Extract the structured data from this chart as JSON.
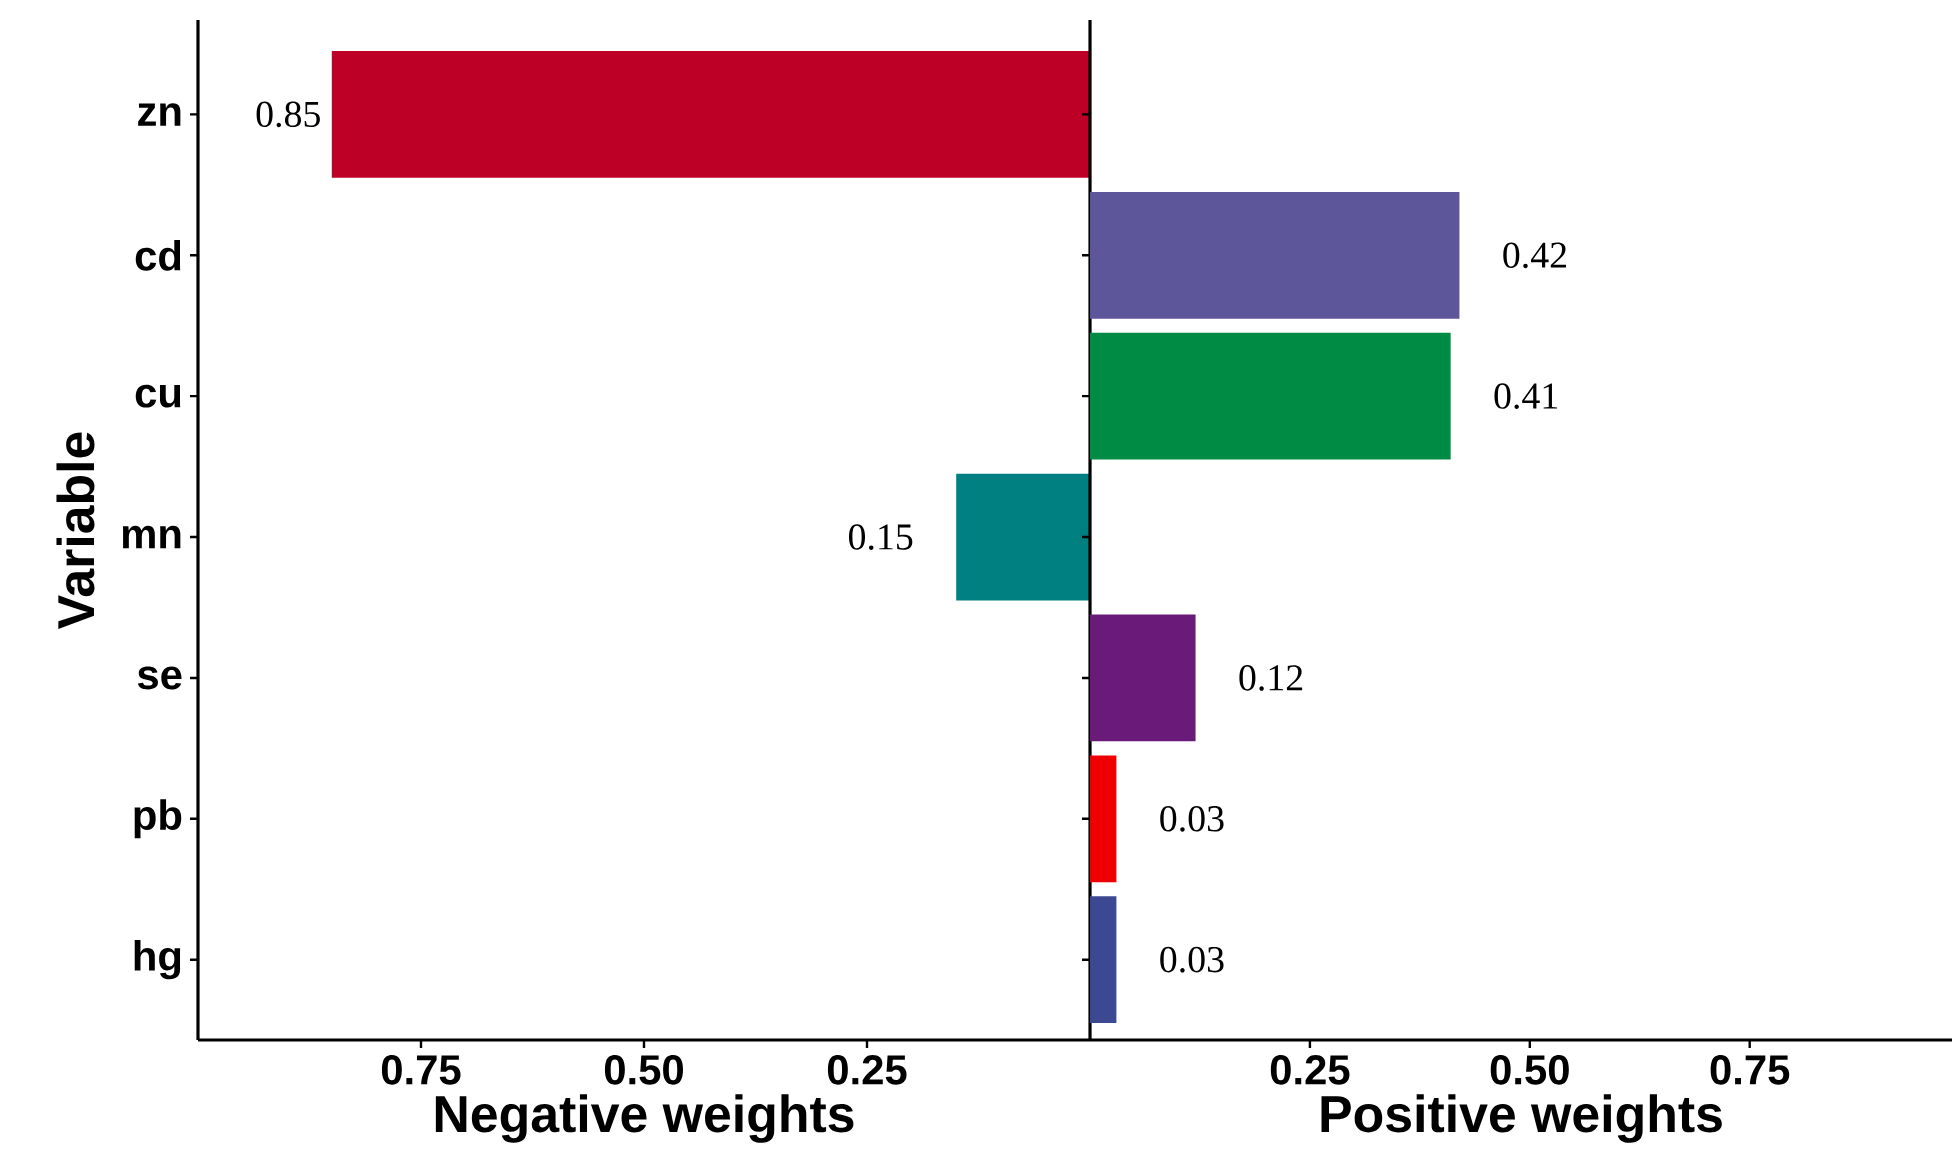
{
  "chart_data": [
    {
      "type": "bar",
      "orientation": "horizontal",
      "categories": [
        "zn",
        "cd",
        "cu",
        "mn",
        "se",
        "pb",
        "hg"
      ],
      "values": [
        0.85,
        null,
        null,
        0.15,
        null,
        null,
        null
      ],
      "colors": [
        "#bd0026",
        "#5e569b",
        "#008b45",
        "#008080",
        "#6a1b7a",
        "#ee0000",
        "#3b4992"
      ],
      "xlim": [
        1.0,
        0
      ],
      "xticks": [
        {
          "value": 0.75,
          "label": "0.75"
        },
        {
          "value": 0.5,
          "label": "0.50"
        },
        {
          "value": 0.25,
          "label": "0.25"
        }
      ],
      "xlabel": "Negative weights",
      "ylabel": "Variable",
      "data_labels": true
    },
    {
      "type": "bar",
      "orientation": "horizontal",
      "categories": [
        null,
        null,
        null,
        null,
        null,
        null,
        null
      ],
      "values": [
        null,
        0.42,
        0.41,
        null,
        0.12,
        0.03,
        0.03
      ],
      "colors": [
        "#bd0026",
        "#5e569b",
        "#008b45",
        "#008080",
        "#6a1b7a",
        "#ee0000",
        "#3b4992"
      ],
      "xlim": [
        0,
        0.98
      ],
      "xticks": [
        {
          "value": 0.25,
          "label": "0.25"
        },
        {
          "value": 0.5,
          "label": "0.50"
        },
        {
          "value": 0.75,
          "label": "0.75"
        }
      ],
      "xlabel": "Positive weights",
      "tick_labels": "x",
      "data_labels": true
    }
  ]
}
